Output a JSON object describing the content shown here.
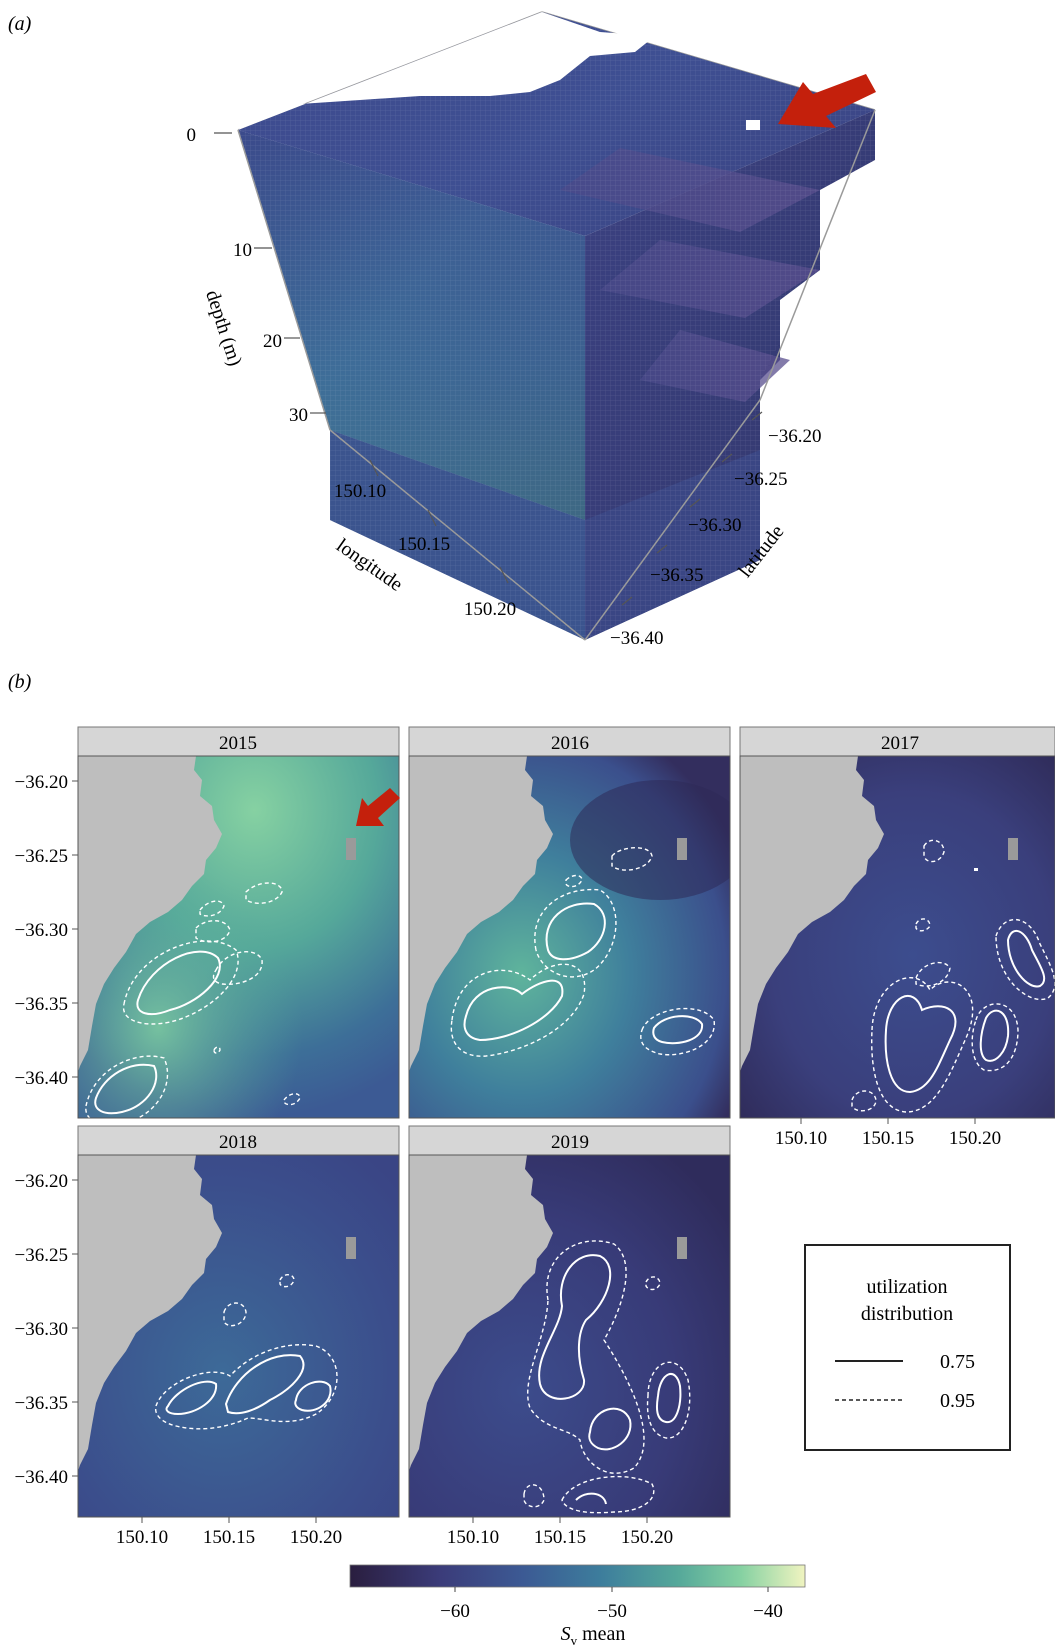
{
  "panel_a": {
    "label": "(a)",
    "depth_axis": {
      "title": "depth (m)",
      "ticks": [
        "0",
        "10",
        "20",
        "30"
      ]
    },
    "longitude_axis": {
      "title": "longitude",
      "ticks": [
        "150.10",
        "150.15",
        "150.20"
      ]
    },
    "latitude_axis": {
      "title": "latitude",
      "ticks": [
        "−36.20",
        "−36.25",
        "−36.30",
        "−36.35",
        "−36.40"
      ]
    },
    "arrow_color": "#c4200c"
  },
  "panel_b": {
    "label": "(b)",
    "facets": [
      "2015",
      "2016",
      "2017",
      "2018",
      "2019"
    ],
    "y_ticks": [
      "−36.20",
      "−36.25",
      "−36.30",
      "−36.35",
      "−36.40"
    ],
    "x_ticks": [
      "150.10",
      "150.15",
      "150.20"
    ],
    "legend": {
      "title_line1": "utilization",
      "title_line2": "distribution",
      "items": [
        {
          "style": "solid",
          "label": "0.75"
        },
        {
          "style": "dashed",
          "label": "0.95"
        }
      ]
    },
    "colorbar": {
      "ticks": [
        "−60",
        "−50",
        "−40"
      ],
      "title_s": "S",
      "title_sub": "v",
      "title_rest": " mean",
      "colors": [
        "#2a1e3f",
        "#3b3c7a",
        "#3c5a94",
        "#3d7d9c",
        "#55a89a",
        "#86d1a2",
        "#f0f4c0"
      ]
    },
    "arrow_color": "#c4200c"
  },
  "chart_data": [
    {
      "type": "heatmap",
      "panel": "a",
      "description_source": "3D volume of Sv mean by depth, longitude and latitude",
      "axes": {
        "depth": {
          "label": "depth (m)",
          "ticks": [
            0,
            10,
            20,
            30
          ]
        },
        "longitude": {
          "label": "longitude",
          "ticks": [
            150.1,
            150.15,
            150.2
          ]
        },
        "latitude": {
          "label": "latitude",
          "ticks": [
            -36.2,
            -36.25,
            -36.3,
            -36.35,
            -36.4
          ]
        }
      }
    },
    {
      "type": "heatmap",
      "panel": "b",
      "facets": [
        "2015",
        "2016",
        "2017",
        "2018",
        "2019"
      ],
      "xticks": [
        150.1,
        150.15,
        150.2
      ],
      "yticks": [
        -36.2,
        -36.25,
        -36.3,
        -36.35,
        -36.4
      ],
      "colorbar": {
        "label": "Sv mean",
        "ticks": [
          -60,
          -50,
          -40
        ],
        "range": [
          -67,
          -38
        ]
      },
      "legend": {
        "title": "utilization distribution",
        "levels": [
          0.75,
          0.95
        ],
        "styles": [
          "solid",
          "dashed"
        ]
      }
    }
  ]
}
